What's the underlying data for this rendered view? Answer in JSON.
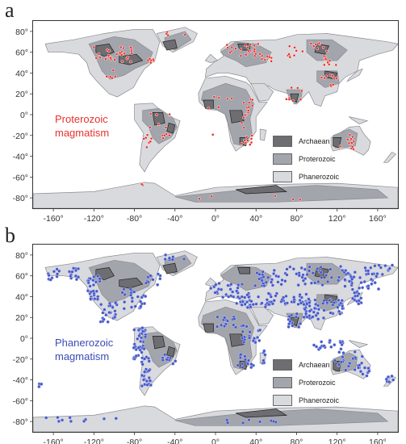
{
  "panels": [
    {
      "letter": "a",
      "annotation_line1": "Proterozoic",
      "annotation_line2": "magmatism",
      "annotation_color": "#e8322c",
      "dot_fill": "#e8322c",
      "dot_stroke": "#ffffff"
    },
    {
      "letter": "b",
      "annotation_line1": "Phanerozoic",
      "annotation_line2": "magmatism",
      "annotation_color": "#3c4cb4",
      "dot_fill": "#4457c8",
      "dot_stroke": "#c9d0f2"
    }
  ],
  "legend": [
    {
      "label": "Archaean",
      "color": "#6d6d72"
    },
    {
      "label": "Proterozoic",
      "color": "#a3a5ad"
    },
    {
      "label": "Phanerozoic",
      "color": "#d9dadd"
    }
  ],
  "axes": {
    "lon_ticks": [
      "-160°",
      "-120°",
      "-80°",
      "-40°",
      "0°",
      "40°",
      "80°",
      "120°",
      "160°"
    ],
    "lat_ticks": [
      "80°",
      "60°",
      "40°",
      "20°",
      "0°",
      "-20°",
      "-40°",
      "-60°",
      "-80°"
    ]
  }
}
